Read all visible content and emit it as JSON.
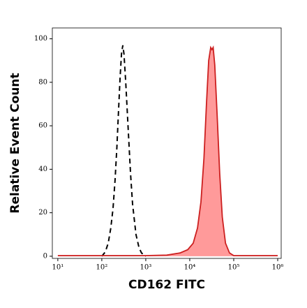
{
  "chart_data": {
    "type": "histogram-log",
    "xlabel": "CD162 FITC",
    "ylabel": "Relative Event Count",
    "xscale": "log",
    "xlim": [
      7.5,
      1200000
    ],
    "ylim": [
      -1,
      105
    ],
    "xticks": [
      {
        "value": 10,
        "label": "10¹"
      },
      {
        "value": 100,
        "label": "10²"
      },
      {
        "value": 1000,
        "label": "10³"
      },
      {
        "value": 10000,
        "label": "10⁴"
      },
      {
        "value": 100000,
        "label": "10⁵"
      },
      {
        "value": 1000000,
        "label": "10⁶"
      }
    ],
    "yticks": [
      0,
      20,
      40,
      60,
      80,
      100
    ],
    "series": [
      {
        "style": "dashed",
        "color": "#000000",
        "x": [
          100,
          120,
          140,
          160,
          180,
          200,
          220,
          240,
          260,
          280,
          300,
          320,
          350,
          400,
          450,
          500,
          600,
          700,
          800,
          1000
        ],
        "values": [
          0,
          2,
          6,
          13,
          22,
          35,
          50,
          67,
          82,
          93,
          97,
          93,
          80,
          58,
          38,
          24,
          10,
          4,
          1.5,
          0
        ]
      },
      {
        "style": "filled",
        "color": "#cc1f1f",
        "fill": "#ff9a9a",
        "x": [
          10,
          100,
          1000,
          3000,
          6000,
          9000,
          12000,
          15000,
          18000,
          21000,
          24000,
          27000,
          30000,
          32000,
          34000,
          37000,
          42000,
          48000,
          55000,
          65000,
          80000,
          100000,
          1000000
        ],
        "values": [
          0.3,
          0.3,
          0.3,
          0.5,
          1.5,
          3,
          6,
          13,
          25,
          45,
          70,
          90,
          96,
          95,
          96,
          88,
          65,
          38,
          18,
          6,
          1.5,
          0.3,
          0.3
        ]
      }
    ]
  }
}
